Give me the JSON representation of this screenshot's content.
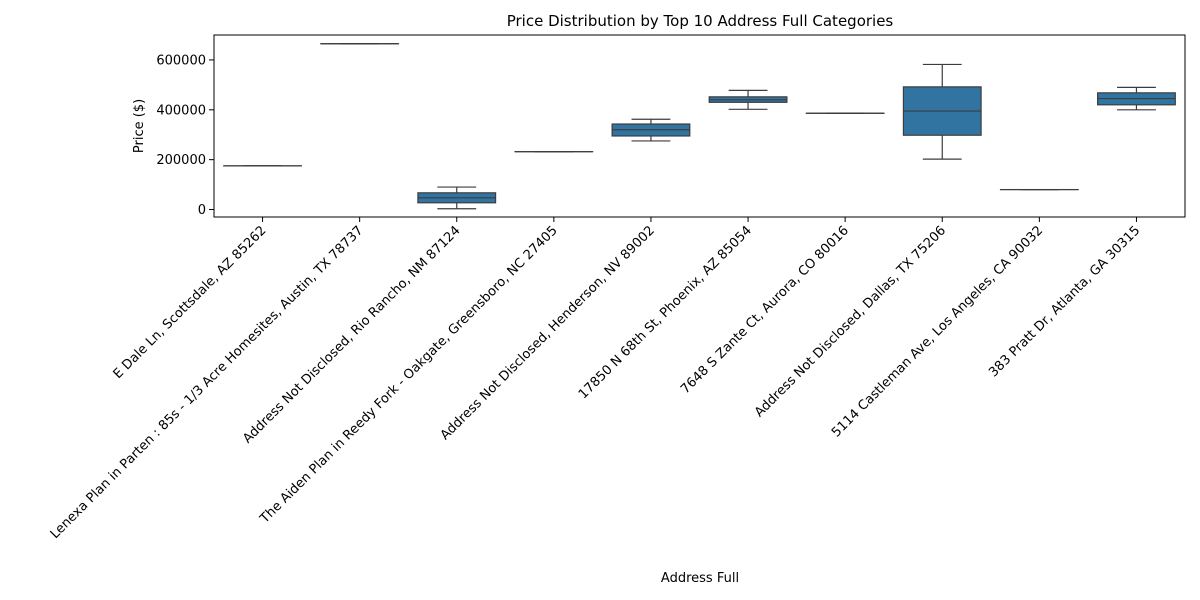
{
  "chart_data": {
    "type": "box",
    "title": "Price Distribution by Top 10 Address Full Categories",
    "xlabel": "Address Full",
    "ylabel": "Price ($)",
    "ylim": [
      -30000,
      700000
    ],
    "yticks": [
      0,
      200000,
      400000,
      600000
    ],
    "ytick_labels": [
      "0",
      "200000",
      "400000",
      "600000"
    ],
    "grid": false,
    "box_color": "#3274a1",
    "edge_color": "#3d3d3d",
    "categories": [
      "E Dale Ln, Scottsdale, AZ 85262",
      "Lenexa Plan in Parten : 85s - 1/3 Acre Homesites, Austin, TX 78737",
      "Address Not Disclosed, Rio Rancho, NM 87124",
      "The Aiden Plan in Reedy Fork - Oakgate, Greensboro, NC 27405",
      "Address Not Disclosed, Henderson, NV 89002",
      "17850 N 68th St, Phoenix, AZ 85054",
      "7648 S Zante Ct, Aurora, CO 80016",
      "Address Not Disclosed, Dallas, TX 75206",
      "5114 Castleman Ave, Los Angeles, CA 90032",
      "383 Pratt Dr, Atlanta, GA 30315"
    ],
    "boxes": [
      {
        "whisker_low": 175000,
        "q1": 175000,
        "median": 175000,
        "q3": 175000,
        "whisker_high": 175000
      },
      {
        "whisker_low": 665000,
        "q1": 665000,
        "median": 665000,
        "q3": 665000,
        "whisker_high": 665000
      },
      {
        "whisker_low": 3000,
        "q1": 27000,
        "median": 47000,
        "q3": 67000,
        "whisker_high": 90000
      },
      {
        "whisker_low": 232000,
        "q1": 232000,
        "median": 232000,
        "q3": 232000,
        "whisker_high": 232000
      },
      {
        "whisker_low": 275000,
        "q1": 295000,
        "median": 320000,
        "q3": 343000,
        "whisker_high": 362000
      },
      {
        "whisker_low": 402000,
        "q1": 430000,
        "median": 440000,
        "q3": 452000,
        "whisker_high": 478000
      },
      {
        "whisker_low": 386000,
        "q1": 386000,
        "median": 386000,
        "q3": 386000,
        "whisker_high": 386000
      },
      {
        "whisker_low": 202000,
        "q1": 298000,
        "median": 395000,
        "q3": 492000,
        "whisker_high": 582000
      },
      {
        "whisker_low": 80000,
        "q1": 80000,
        "median": 80000,
        "q3": 80000,
        "whisker_high": 80000
      },
      {
        "whisker_low": 400000,
        "q1": 420000,
        "median": 445000,
        "q3": 468000,
        "whisker_high": 490000
      }
    ]
  }
}
